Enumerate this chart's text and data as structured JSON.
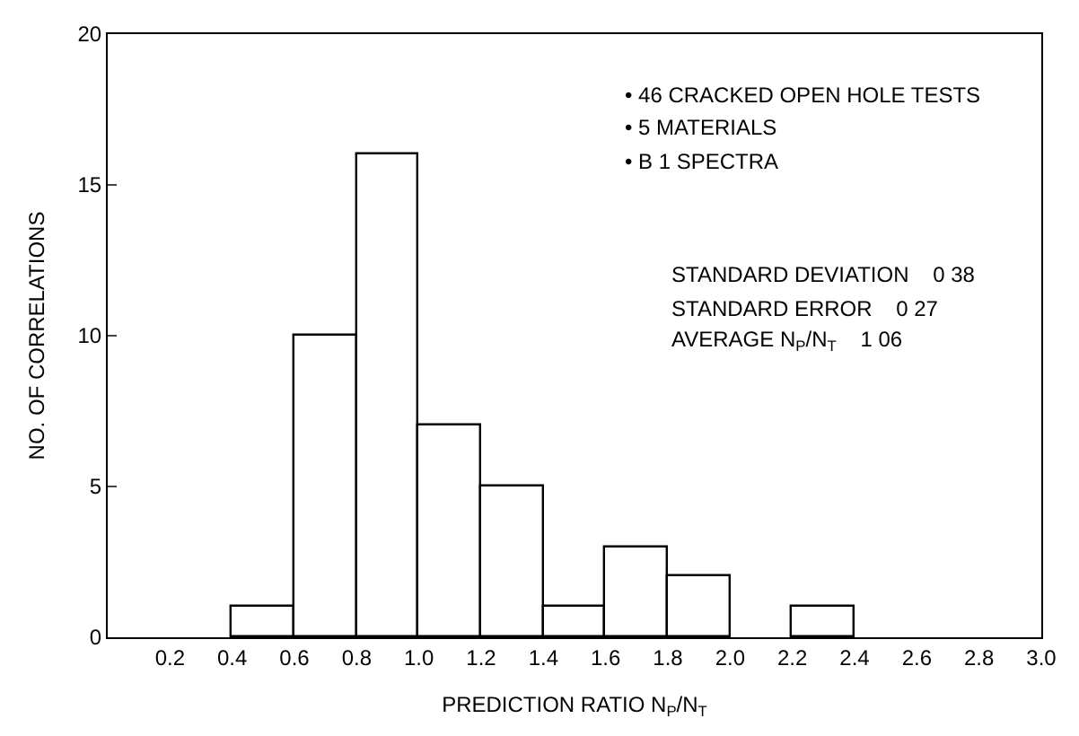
{
  "chart_data": {
    "type": "histogram",
    "xlabel": "PREDICTION RATIO N$_{P}$/N$_{T}$",
    "ylabel": "NO. OF CORRELATIONS",
    "bins": [
      0.4,
      0.6,
      0.8,
      1.0,
      1.2,
      1.4,
      1.6,
      1.8,
      2.0,
      2.2,
      2.4
    ],
    "values": [
      1,
      10,
      16,
      7,
      5,
      1,
      3,
      2,
      0,
      1
    ],
    "color": "#ffffff",
    "xlim": [
      0,
      3.0
    ],
    "xticks": [
      0.2,
      0.4,
      0.6,
      0.8,
      {
        "value": 1.0,
        "label": "1.0"
      },
      1.2,
      1.4,
      1.6,
      1.8,
      {
        "value": 2.0,
        "label": "2.0"
      },
      2.2,
      2.4,
      2.6,
      2.8,
      {
        "value": 3.0,
        "label": "3.0"
      }
    ],
    "ylim": [
      0,
      20
    ],
    "yticks": [
      0,
      5,
      10,
      15,
      20
    ],
    "grid": false,
    "annotations": [
      "• 46 CRACKED OPEN HOLE TESTS",
      "• 5 MATERIALS",
      "• B 1 SPECTRA",
      "STANDARD DEVIATION    0 38",
      "STANDARD ERROR    0 27",
      "AVERAGE N$_{P}$/N$_{T}$    1 06"
    ]
  }
}
